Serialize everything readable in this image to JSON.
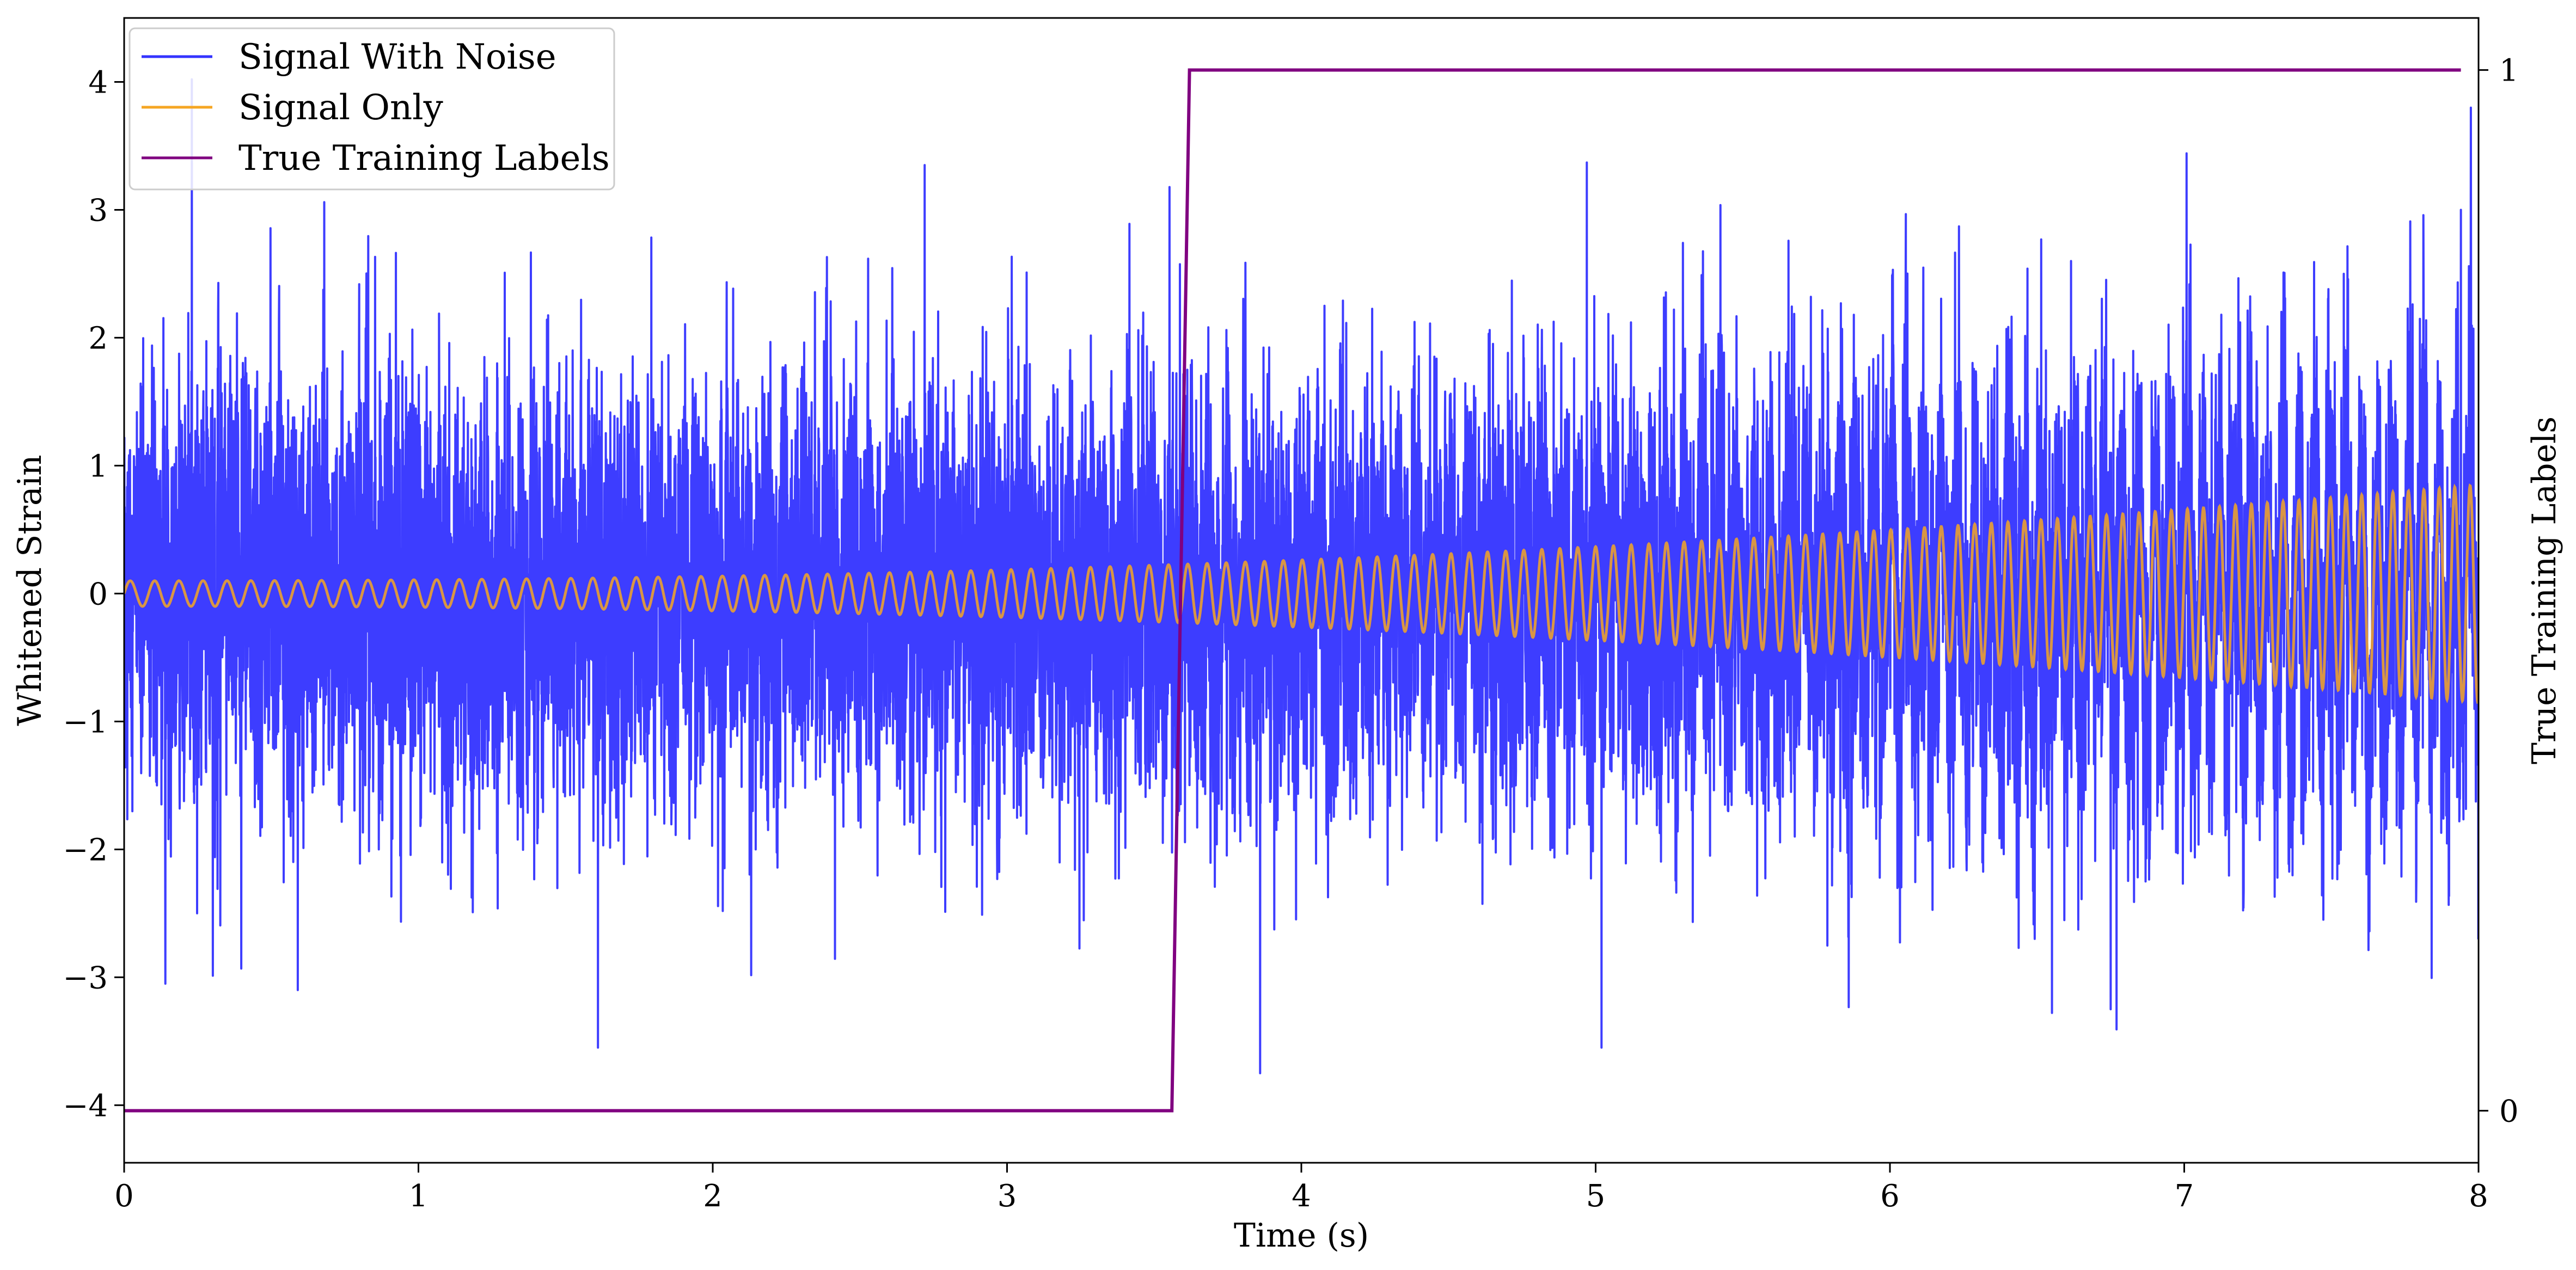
{
  "chart_data": {
    "type": "line",
    "title": "",
    "xlabel": "Time (s)",
    "ylabel": "Whitened Strain",
    "y2label": "True Training Labels",
    "xlim": [
      0,
      8
    ],
    "ylim": [
      -4.45,
      4.5
    ],
    "y2lim": [
      -0.05,
      1.05
    ],
    "x_ticks": [
      0,
      1,
      2,
      3,
      4,
      5,
      6,
      7,
      8
    ],
    "x_tick_labels": [
      "0",
      "1",
      "2",
      "3",
      "4",
      "5",
      "6",
      "7",
      "8"
    ],
    "y_ticks": [
      -4,
      -3,
      -2,
      -1,
      0,
      1,
      2,
      3,
      4
    ],
    "y_tick_labels": [
      "−4",
      "−3",
      "−2",
      "−1",
      "0",
      "1",
      "2",
      "3",
      "4"
    ],
    "y2_ticks": [
      0,
      1
    ],
    "y2_tick_labels": [
      "0",
      "1"
    ],
    "grid": false,
    "legend_position": "top-left",
    "series": [
      {
        "name": "Signal With Noise",
        "color": "#3333ff",
        "axis": "left",
        "description": "dense gaussian noise, std approx 0.85, range approx -3.7 to 4.0 over 0-8 s",
        "x_range": [
          0,
          8
        ],
        "noise_std": 0.85,
        "peaks": [
          {
            "x": 0.23,
            "y": 4.02
          },
          {
            "x": 0.68,
            "y": 3.06
          },
          {
            "x": 2.72,
            "y": 3.35
          },
          {
            "x": 4.97,
            "y": 3.37
          },
          {
            "x": 7.94,
            "y": 3.0
          },
          {
            "x": 0.14,
            "y": -3.05
          },
          {
            "x": 0.59,
            "y": -3.1
          },
          {
            "x": 1.61,
            "y": -3.55
          },
          {
            "x": 3.86,
            "y": -3.75
          },
          {
            "x": 5.02,
            "y": -3.55
          },
          {
            "x": 6.75,
            "y": -3.25
          }
        ]
      },
      {
        "name": "Signal Only",
        "color": "#f5a623",
        "axis": "left",
        "description": "chirp oscillation, amplitude grows from approx 0.1 at t=0 to approx 0.85 at t=8, frequency increases",
        "amplitude_start": 0.1,
        "amplitude_end": 0.85,
        "x_range": [
          0,
          8
        ]
      },
      {
        "name": "True Training Labels",
        "color": "#800080",
        "axis": "right",
        "x": [
          0,
          3.56,
          3.62,
          7.94
        ],
        "values": [
          0,
          0,
          1,
          1
        ]
      }
    ]
  }
}
